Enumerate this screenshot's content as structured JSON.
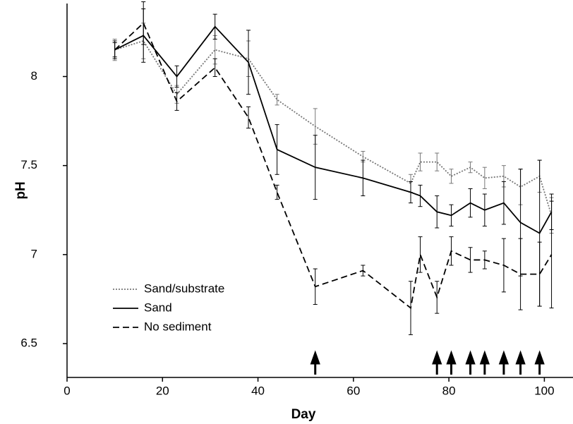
{
  "chart_data": {
    "type": "line",
    "x_label": "Day",
    "y_label": "pH",
    "x": [
      10,
      16,
      23,
      31,
      38,
      44,
      52,
      62,
      72,
      74,
      77.5,
      80.5,
      84.5,
      87.5,
      91.5,
      95,
      99,
      101.5
    ],
    "series": [
      {
        "name": "Sand/substrate",
        "color": "#777777",
        "dash": "dotted",
        "values": [
          8.15,
          8.2,
          7.9,
          8.15,
          8.1,
          7.87,
          7.72,
          7.55,
          7.4,
          7.52,
          7.52,
          7.44,
          7.49,
          7.43,
          7.44,
          7.38,
          7.44,
          7.22
        ],
        "errors": [
          0.06,
          0.1,
          0.05,
          0.08,
          0.1,
          0.03,
          0.1,
          0.03,
          0.05,
          0.05,
          0.05,
          0.04,
          0.03,
          0.06,
          0.06,
          0.1,
          0.09,
          0.1
        ]
      },
      {
        "name": "Sand",
        "color": "#000000",
        "dash": "solid",
        "values": [
          8.15,
          8.23,
          8.0,
          8.28,
          8.08,
          7.59,
          7.49,
          7.43,
          7.35,
          7.33,
          7.24,
          7.22,
          7.29,
          7.25,
          7.29,
          7.18,
          7.12,
          7.24
        ],
        "errors": [
          0.05,
          0.15,
          0.06,
          0.07,
          0.18,
          0.14,
          0.18,
          0.1,
          0.06,
          0.06,
          0.09,
          0.06,
          0.08,
          0.09,
          0.12,
          0.3,
          0.41,
          0.1
        ]
      },
      {
        "name": "No sediment",
        "color": "#000000",
        "dash": "dashed",
        "values": [
          8.15,
          8.3,
          7.86,
          8.05,
          7.77,
          7.35,
          6.82,
          6.91,
          6.7,
          7.0,
          6.76,
          7.02,
          6.97,
          6.97,
          6.94,
          6.89,
          6.89,
          7.0
        ],
        "errors": [
          0.04,
          0.12,
          0.05,
          0.05,
          0.06,
          0.04,
          0.1,
          0.03,
          0.15,
          0.1,
          0.09,
          0.08,
          0.07,
          0.05,
          0.15,
          0.2,
          0.18,
          0.3
        ]
      }
    ],
    "arrows": [
      52,
      77.5,
      80.5,
      84.5,
      87.5,
      91.5,
      95,
      99
    ],
    "xlim": [
      0,
      106
    ],
    "ylim": [
      6.31,
      8.41
    ],
    "xticks": [
      0,
      20,
      40,
      60,
      80,
      100
    ],
    "yticks": [
      6.5,
      7,
      7.5,
      8
    ],
    "legend": "lower left"
  }
}
